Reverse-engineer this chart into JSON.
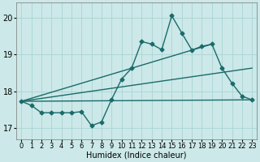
{
  "title": "",
  "xlabel": "Humidex (Indice chaleur)",
  "bg_color": "#cce8e8",
  "line_color": "#1a6b6b",
  "xlim": [
    -0.5,
    23.5
  ],
  "ylim": [
    16.7,
    20.4
  ],
  "xticks": [
    0,
    1,
    2,
    3,
    4,
    5,
    6,
    7,
    8,
    9,
    10,
    11,
    12,
    13,
    14,
    15,
    16,
    17,
    18,
    19,
    20,
    21,
    22,
    23
  ],
  "yticks": [
    17,
    18,
    19,
    20
  ],
  "line1_x": [
    0,
    1,
    2,
    3,
    4,
    5,
    6,
    7,
    8,
    9,
    10,
    11,
    12,
    13,
    14,
    15,
    16,
    17,
    18,
    19,
    20,
    21,
    22,
    23
  ],
  "line1_y": [
    17.73,
    17.62,
    17.42,
    17.42,
    17.42,
    17.42,
    17.45,
    17.07,
    17.17,
    17.78,
    18.33,
    18.63,
    19.35,
    19.28,
    19.13,
    20.05,
    19.58,
    19.12,
    19.22,
    19.28,
    18.63,
    18.22,
    17.87,
    17.77
  ],
  "line2_x": [
    0,
    23
  ],
  "line2_y": [
    17.73,
    17.77
  ],
  "line3_x": [
    0,
    23
  ],
  "line3_y": [
    17.73,
    18.63
  ],
  "line4_x": [
    0,
    19
  ],
  "line4_y": [
    17.73,
    19.28
  ],
  "grid_color": "#aad4d4",
  "xlabel_fontsize": 7,
  "tick_fontsize": 6,
  "linewidth": 1.0,
  "markersize": 2.5
}
